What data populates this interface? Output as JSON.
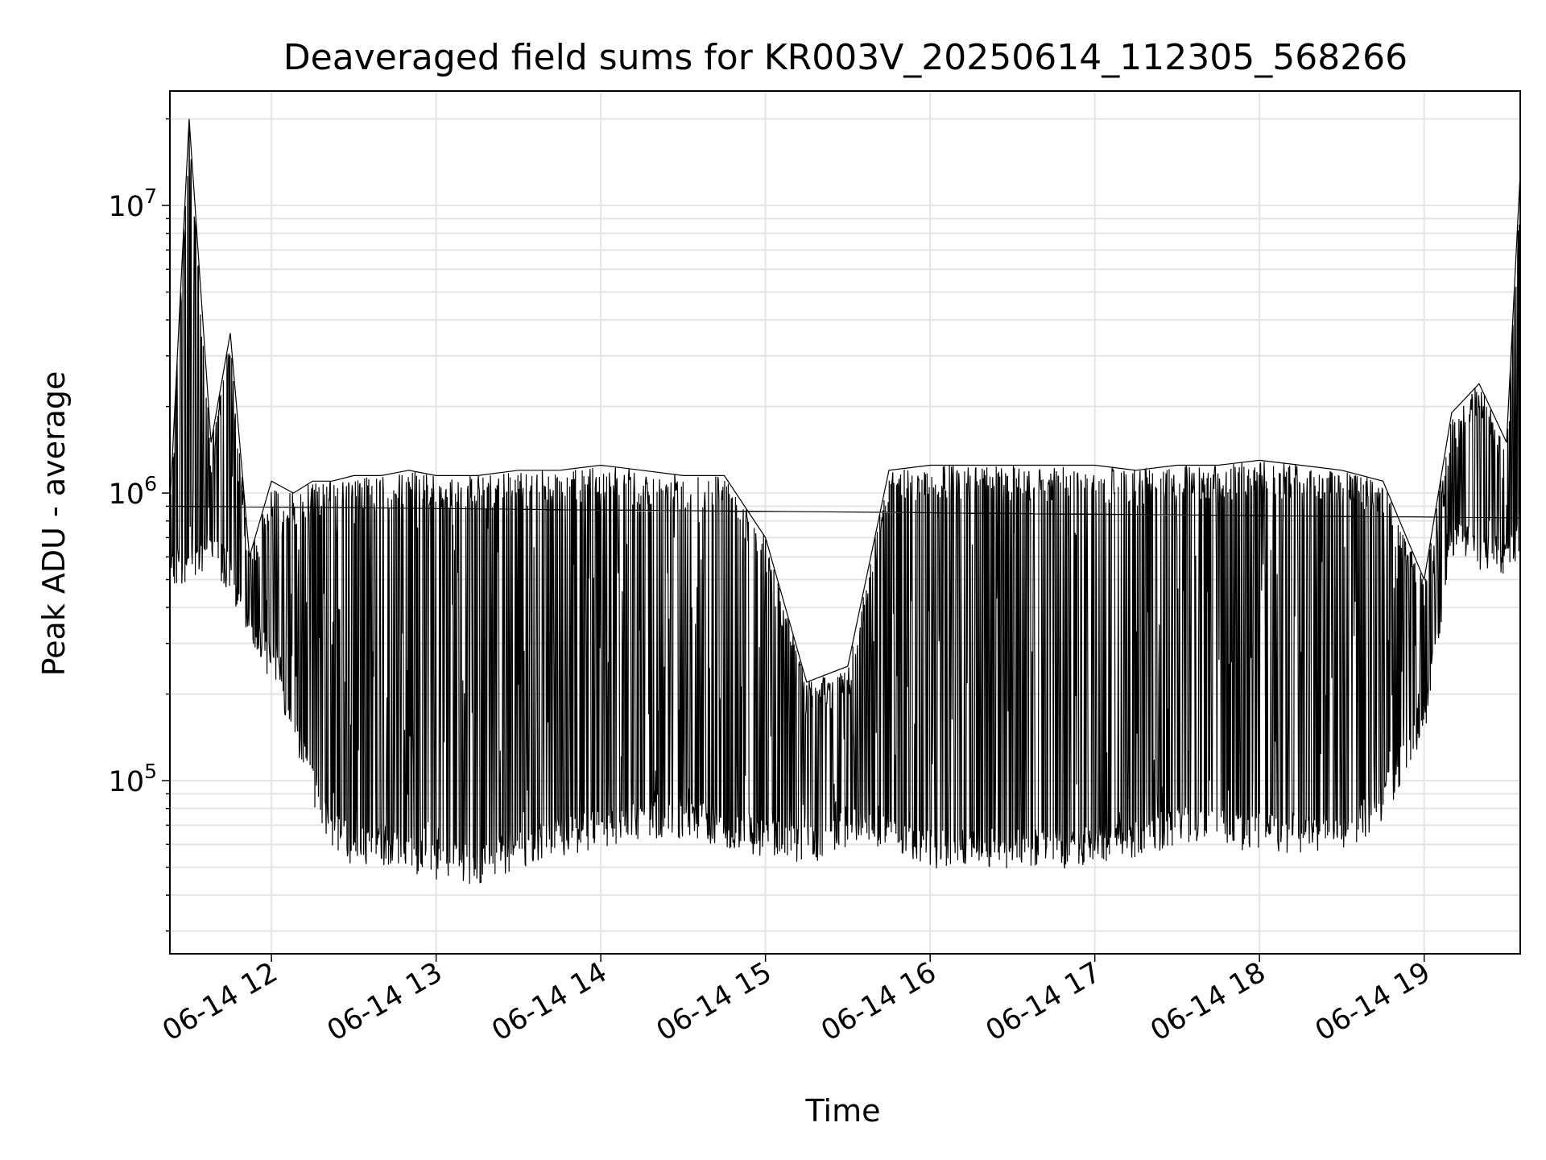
{
  "chart_data": {
    "type": "line",
    "title": "Deaveraged field sums for KR003V_20250614_112305_568266",
    "xlabel": "Time",
    "ylabel": "Peak ADU - average",
    "yscale": "log",
    "ylim": [
      25000,
      25000000
    ],
    "xlim": [
      "2025-06-14 11:23",
      "2025-06-14 19:35"
    ],
    "grid": true,
    "line_color": "#000000",
    "x_ticks": [
      "06-14 12",
      "06-14 13",
      "06-14 14",
      "06-14 15",
      "06-14 16",
      "06-14 17",
      "06-14 18",
      "06-14 19"
    ],
    "y_ticks": [
      {
        "base": "10",
        "exp": "5",
        "value": 100000
      },
      {
        "base": "10",
        "exp": "6",
        "value": 1000000
      },
      {
        "base": "10",
        "exp": "7",
        "value": 10000000
      }
    ],
    "series": [
      {
        "x": [
          "2025-06-14 11:23",
          "2025-06-14 11:30",
          "2025-06-14 11:38",
          "2025-06-14 11:45",
          "2025-06-14 11:52",
          "2025-06-14 12:00",
          "2025-06-14 12:08",
          "2025-06-14 12:15",
          "2025-06-14 12:22",
          "2025-06-14 12:30",
          "2025-06-14 12:40",
          "2025-06-14 12:50",
          "2025-06-14 13:00",
          "2025-06-14 13:15",
          "2025-06-14 13:30",
          "2025-06-14 13:45",
          "2025-06-14 14:00",
          "2025-06-14 14:15",
          "2025-06-14 14:30",
          "2025-06-14 14:45",
          "2025-06-14 15:00",
          "2025-06-14 15:15",
          "2025-06-14 15:30",
          "2025-06-14 15:45",
          "2025-06-14 16:00",
          "2025-06-14 16:15",
          "2025-06-14 16:30",
          "2025-06-14 16:45",
          "2025-06-14 17:00",
          "2025-06-14 17:15",
          "2025-06-14 17:30",
          "2025-06-14 17:45",
          "2025-06-14 18:00",
          "2025-06-14 18:15",
          "2025-06-14 18:30",
          "2025-06-14 18:45",
          "2025-06-14 19:00",
          "2025-06-14 19:10",
          "2025-06-14 19:20",
          "2025-06-14 19:30",
          "2025-06-14 19:35"
        ],
        "low": [
          500000,
          550000,
          600000,
          500000,
          300000,
          250000,
          150000,
          90000,
          65000,
          55000,
          55000,
          52000,
          50000,
          48000,
          55000,
          60000,
          65000,
          70000,
          70000,
          65000,
          60000,
          55000,
          65000,
          60000,
          55000,
          55000,
          55000,
          55000,
          55000,
          60000,
          65000,
          65000,
          62000,
          62000,
          60000,
          80000,
          150000,
          650000,
          600000,
          550000,
          700000
        ],
        "high": [
          900000,
          20000000,
          1500000,
          3600000,
          600000,
          1100000,
          1000000,
          1100000,
          1100000,
          1150000,
          1150000,
          1200000,
          1150000,
          1150000,
          1200000,
          1200000,
          1250000,
          1200000,
          1150000,
          1150000,
          700000,
          220000,
          250000,
          1200000,
          1250000,
          1250000,
          1250000,
          1250000,
          1250000,
          1200000,
          1250000,
          1250000,
          1300000,
          1250000,
          1200000,
          1100000,
          500000,
          1900000,
          2400000,
          1500000,
          13000000
        ]
      }
    ]
  }
}
